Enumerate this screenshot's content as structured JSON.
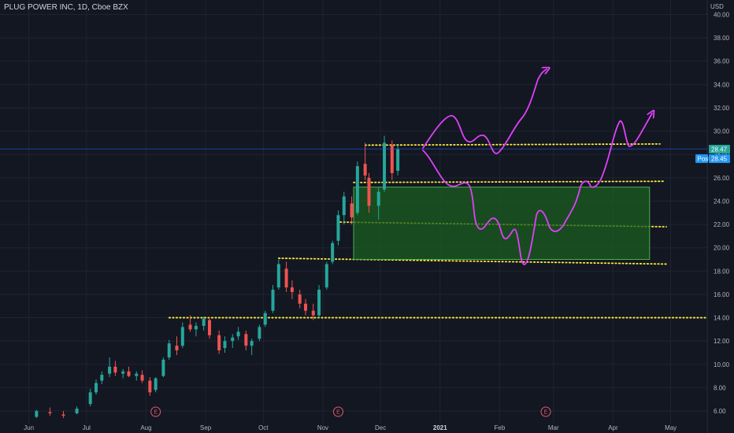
{
  "header": {
    "symbol_title": "PLUG POWER INC, 1D, Cboe BZX",
    "currency": "USD"
  },
  "colors": {
    "background": "#131722",
    "grid": "#1f2433",
    "up": "#26a69a",
    "down": "#ef5350",
    "dotted_level": "#ffeb3b",
    "drawing": "#e040fb",
    "zone_fill": "#1b5e20",
    "zone_border": "#4caf50",
    "last_price_badge": "#26a69a",
    "post_badge": "#2196f3"
  },
  "icons": {
    "earnings_marker": "earnings-circle-icon"
  },
  "price_scale": {
    "ticks": [
      "40.00",
      "38.00",
      "36.00",
      "34.00",
      "32.00",
      "30.00",
      "28.00",
      "26.00",
      "24.00",
      "22.00",
      "20.00",
      "18.00",
      "16.00",
      "14.00",
      "12.00",
      "10.00",
      "8.00",
      "6.00"
    ]
  },
  "badges": {
    "last_price": "28.47",
    "post_label": "Post",
    "post_price": "28.45"
  },
  "time_scale": {
    "ticks": [
      "Jun",
      "Jul",
      "Aug",
      "Sep",
      "Oct",
      "Nov",
      "Dec",
      "2021",
      "Feb",
      "Mar",
      "Apr",
      "May"
    ]
  },
  "earnings_markers": [
    {
      "label": "E"
    },
    {
      "label": "E"
    },
    {
      "label": "E"
    }
  ],
  "chart_data": {
    "type": "candlestick",
    "title": "PLUG POWER INC, 1D, Cboe BZX",
    "currency": "USD",
    "ylim": [
      5.5,
      41.5
    ],
    "x_range": [
      "2020-05-17",
      "2021-05-20"
    ],
    "horizontal_levels": [
      28.8,
      25.6,
      22.0,
      18.7,
      14.0
    ],
    "demand_zone": {
      "from_date": "2020-11-17",
      "to_date": "2021-04-20",
      "low": 19.0,
      "high": 25.2
    },
    "last_price": 28.47,
    "post_market_price": 28.45,
    "candles": [
      [
        "2020-06-05",
        5.5,
        6.1,
        5.4,
        6.0
      ],
      [
        "2020-06-12",
        5.9,
        6.3,
        5.6,
        5.8
      ],
      [
        "2020-06-19",
        5.7,
        6.0,
        5.4,
        5.6
      ],
      [
        "2020-06-26",
        5.8,
        6.4,
        5.7,
        6.2
      ],
      [
        "2020-07-03",
        6.6,
        7.9,
        6.4,
        7.6
      ],
      [
        "2020-07-06",
        7.6,
        8.7,
        7.4,
        8.4
      ],
      [
        "2020-07-09",
        8.6,
        9.4,
        8.3,
        9.1
      ],
      [
        "2020-07-13",
        9.2,
        10.6,
        8.9,
        9.8
      ],
      [
        "2020-07-16",
        9.8,
        10.3,
        9.0,
        9.3
      ],
      [
        "2020-07-20",
        9.2,
        9.6,
        8.8,
        9.4
      ],
      [
        "2020-07-23",
        9.4,
        9.8,
        8.9,
        9.0
      ],
      [
        "2020-07-27",
        9.0,
        9.4,
        8.6,
        9.2
      ],
      [
        "2020-07-30",
        9.1,
        9.5,
        8.4,
        8.6
      ],
      [
        "2020-08-03",
        8.6,
        8.9,
        7.3,
        7.6
      ],
      [
        "2020-08-06",
        7.8,
        8.9,
        7.6,
        8.8
      ],
      [
        "2020-08-10",
        9.0,
        10.6,
        8.9,
        10.4
      ],
      [
        "2020-08-13",
        10.6,
        12.1,
        10.4,
        11.8
      ],
      [
        "2020-08-17",
        11.6,
        12.4,
        10.8,
        11.2
      ],
      [
        "2020-08-20",
        11.6,
        13.6,
        11.4,
        13.2
      ],
      [
        "2020-08-24",
        13.4,
        14.2,
        12.8,
        13.0
      ],
      [
        "2020-08-27",
        13.0,
        13.6,
        12.4,
        13.3
      ],
      [
        "2020-08-31",
        13.3,
        14.1,
        12.9,
        13.9
      ],
      [
        "2020-09-03",
        13.8,
        14.0,
        12.2,
        12.5
      ],
      [
        "2020-09-08",
        12.5,
        12.9,
        10.9,
        11.2
      ],
      [
        "2020-09-11",
        11.4,
        12.4,
        11.0,
        12.0
      ],
      [
        "2020-09-15",
        12.0,
        12.6,
        11.4,
        12.3
      ],
      [
        "2020-09-18",
        12.4,
        13.2,
        12.1,
        12.8
      ],
      [
        "2020-09-22",
        12.6,
        12.9,
        11.2,
        11.6
      ],
      [
        "2020-09-25",
        11.6,
        12.2,
        10.8,
        12.0
      ],
      [
        "2020-09-29",
        12.2,
        13.4,
        12.0,
        13.2
      ],
      [
        "2020-10-02",
        13.4,
        14.6,
        13.2,
        14.4
      ],
      [
        "2020-10-06",
        14.6,
        16.8,
        14.4,
        16.4
      ],
      [
        "2020-10-09",
        16.6,
        19.0,
        16.4,
        18.6
      ],
      [
        "2020-10-13",
        18.2,
        18.8,
        16.2,
        16.6
      ],
      [
        "2020-10-16",
        16.6,
        17.2,
        15.6,
        16.2
      ],
      [
        "2020-10-20",
        16.0,
        16.4,
        14.8,
        15.2
      ],
      [
        "2020-10-23",
        15.2,
        15.6,
        14.2,
        14.6
      ],
      [
        "2020-10-27",
        14.6,
        15.2,
        13.8,
        14.2
      ],
      [
        "2020-10-30",
        14.2,
        16.8,
        14.0,
        16.4
      ],
      [
        "2020-11-03",
        16.6,
        18.8,
        16.4,
        18.6
      ],
      [
        "2020-11-06",
        18.8,
        20.6,
        18.6,
        20.4
      ],
      [
        "2020-11-09",
        20.6,
        23.2,
        20.2,
        22.8
      ],
      [
        "2020-11-12",
        22.8,
        24.8,
        22.0,
        24.4
      ],
      [
        "2020-11-16",
        23.8,
        24.4,
        22.0,
        22.6
      ],
      [
        "2020-11-19",
        23.0,
        27.4,
        22.8,
        27.0
      ],
      [
        "2020-11-23",
        27.2,
        29.0,
        25.8,
        26.2
      ],
      [
        "2020-11-25",
        26.0,
        26.4,
        23.0,
        23.6
      ],
      [
        "2020-11-30",
        23.6,
        25.2,
        22.4,
        24.8
      ],
      [
        "2020-12-03",
        25.0,
        29.6,
        24.8,
        29.0
      ],
      [
        "2020-12-07",
        28.8,
        29.2,
        25.8,
        26.4
      ],
      [
        "2020-12-10",
        26.6,
        28.8,
        26.2,
        28.47
      ]
    ]
  }
}
